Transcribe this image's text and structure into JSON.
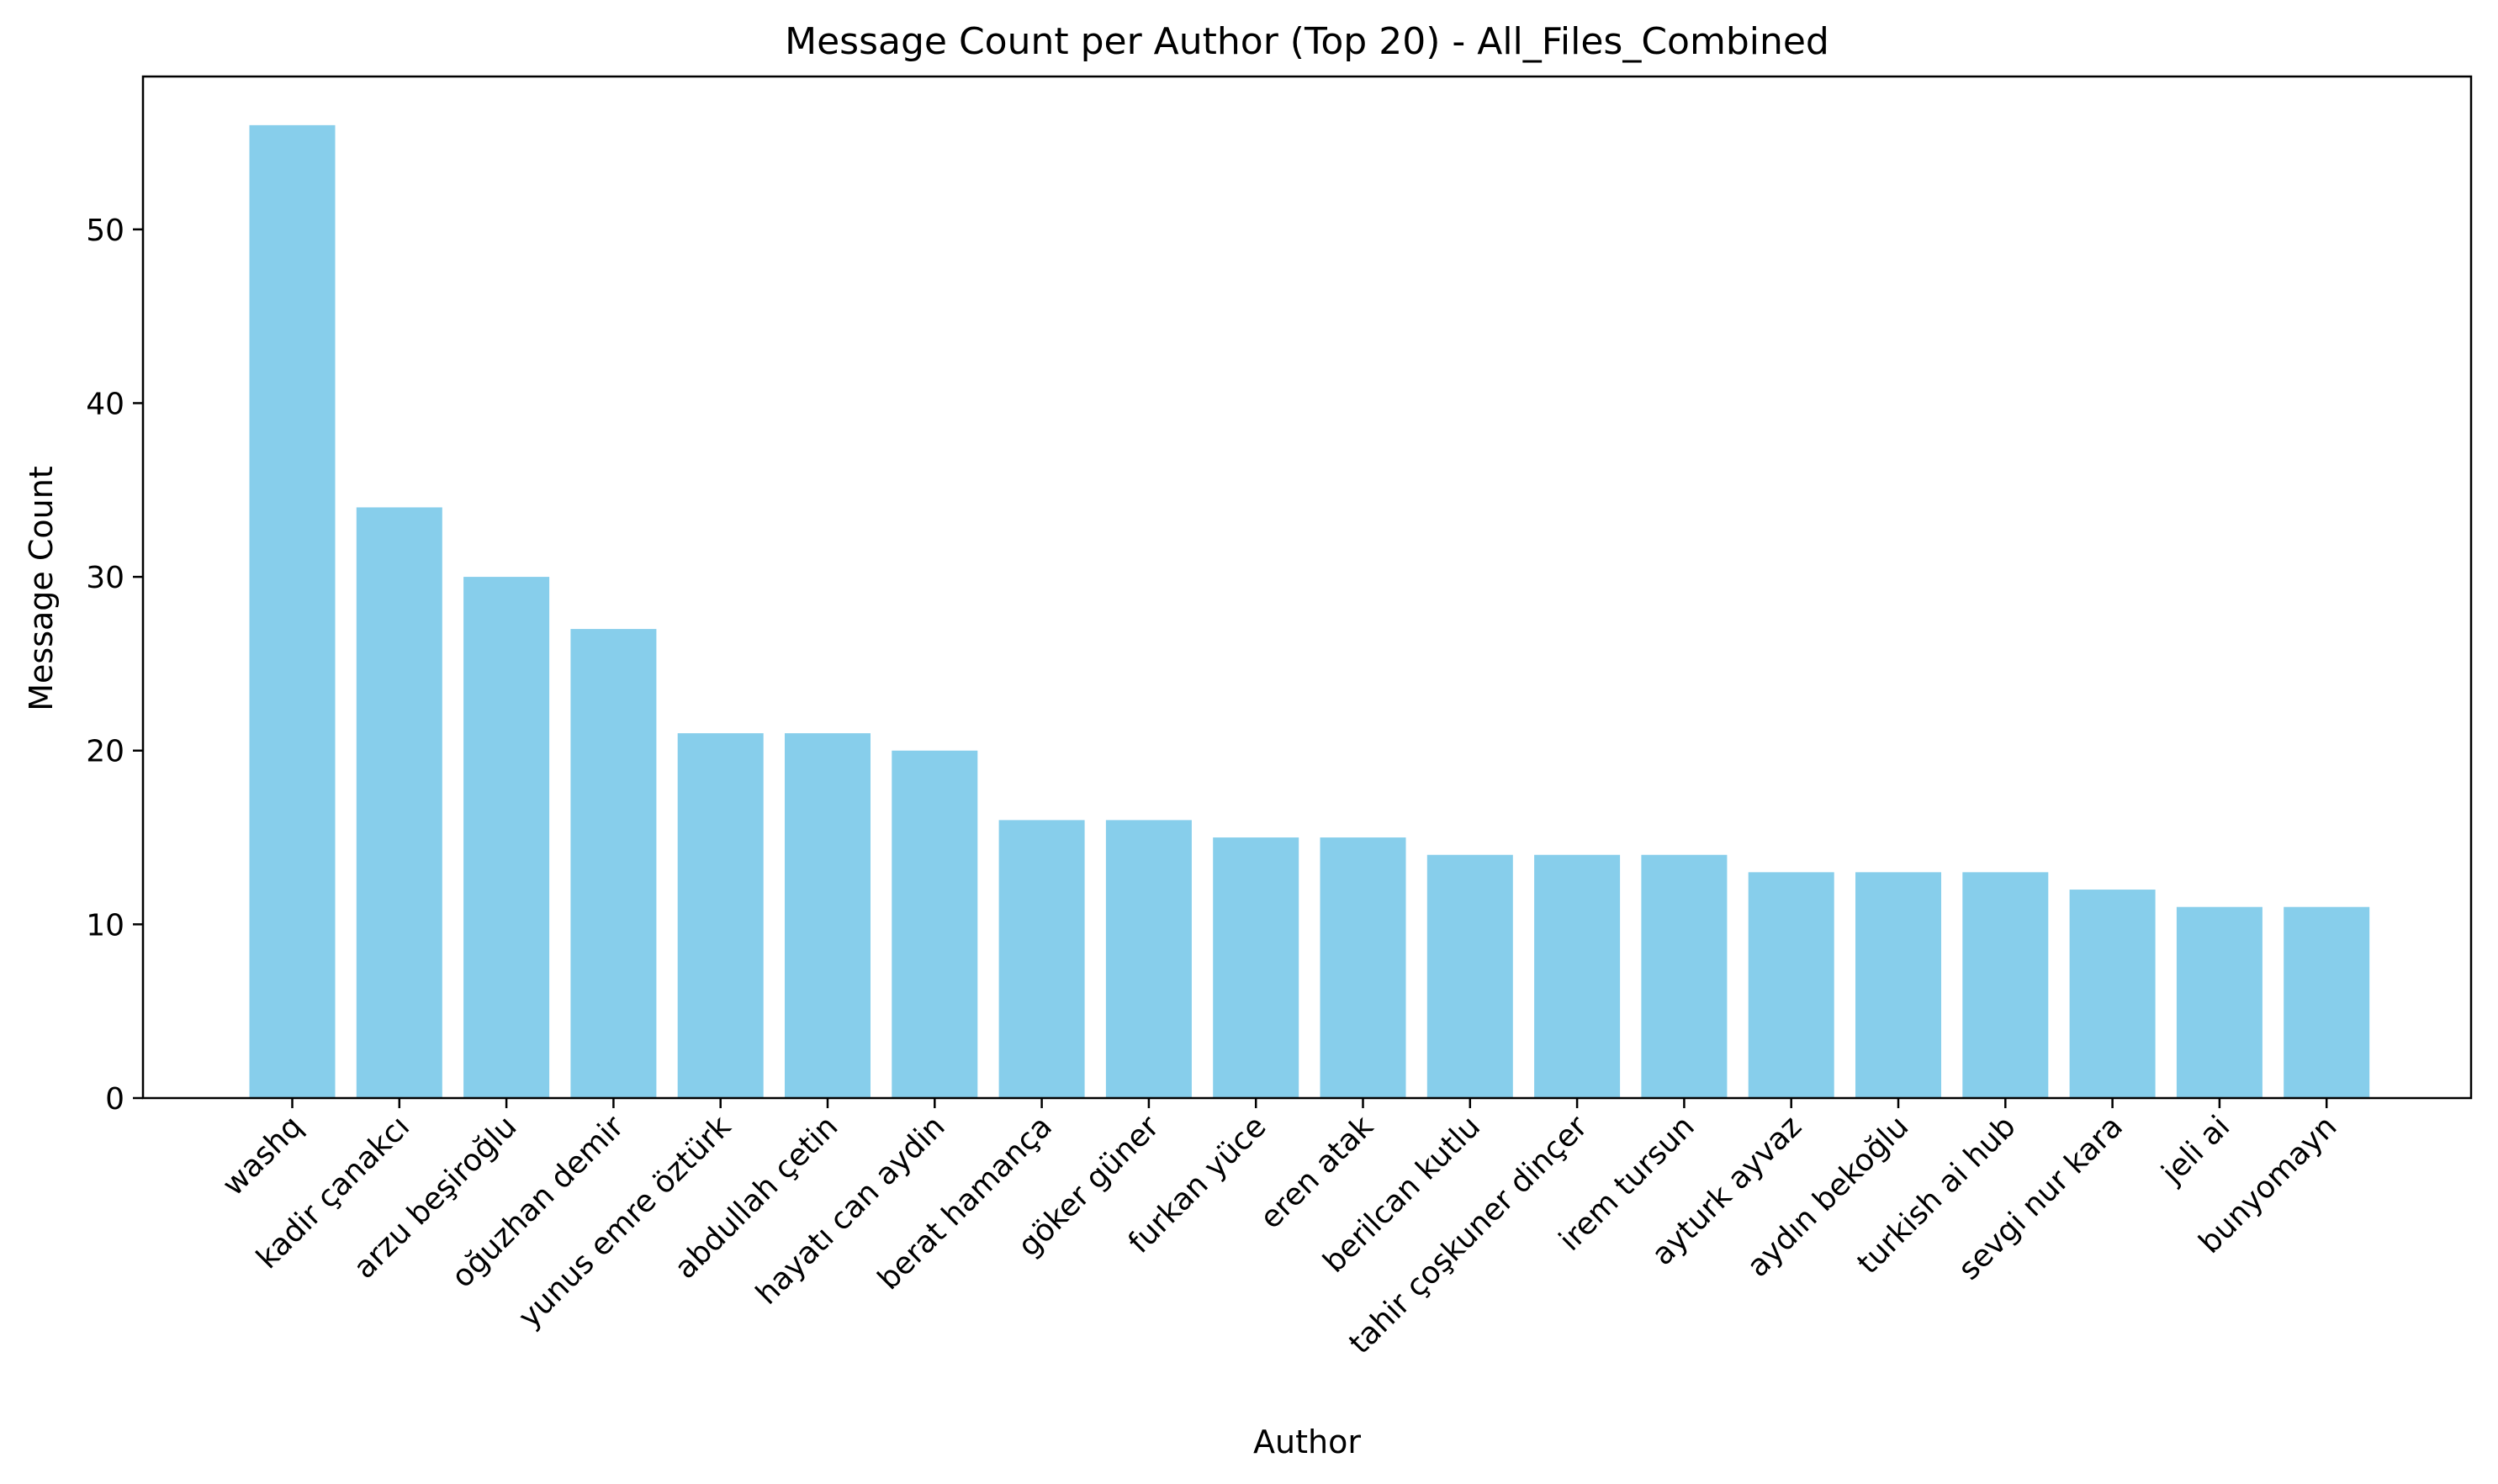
{
  "chart_data": {
    "type": "bar",
    "title": "Message Count per Author (Top 20) - All_Files_Combined",
    "xlabel": "Author",
    "ylabel": "Message Count",
    "ylim": [
      0,
      58.8
    ],
    "yticks": [
      0,
      10,
      20,
      30,
      40,
      50
    ],
    "grid": false,
    "bar_color": "#87CEEB",
    "categories": [
      "washq",
      "kadir çanakcı",
      "arzu beşiroğlu",
      "oğuzhan demir",
      "yunus emre öztürk",
      "abdullah çetin",
      "hayatı can aydin",
      "berat hamança",
      "göker güner",
      "furkan yüce",
      "eren atak",
      "berilcan kutlu",
      "tahir çoşkuner dinçer",
      "irem tursun",
      "ayturk ayvaz",
      "aydın bekoğlu",
      "turkish ai hub",
      "sevgi nur kara",
      "jeli ai",
      "bunyomayn"
    ],
    "values": [
      56,
      34,
      30,
      27,
      21,
      21,
      20,
      16,
      16,
      15,
      15,
      14,
      14,
      14,
      13,
      13,
      13,
      12,
      11,
      11
    ]
  }
}
